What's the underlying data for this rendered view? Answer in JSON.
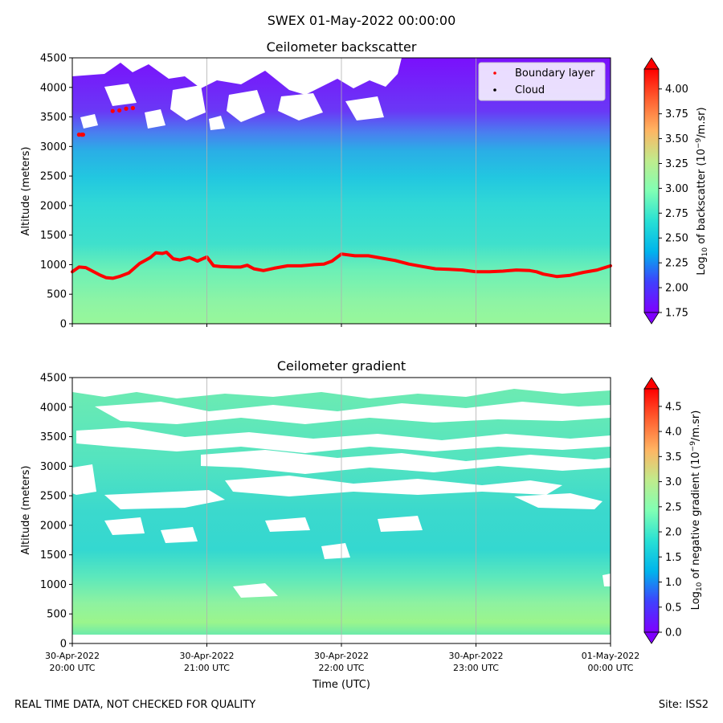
{
  "suptitle": "SWEX 01-May-2022 00:00:00",
  "footer": {
    "left": "REAL TIME DATA, NOT CHECKED FOR QUALITY",
    "right": "Site: ISS2"
  },
  "chart_data": [
    {
      "type": "heatmap",
      "title": "Ceilometer backscatter",
      "xlabel": "",
      "ylabel": "Altitude (meters)",
      "ylim": [
        0,
        4500
      ],
      "yticks": [
        0,
        500,
        1000,
        1500,
        2000,
        2500,
        3000,
        3500,
        4000,
        4500
      ],
      "xlim_hours": [
        20,
        24
      ],
      "colorbar": {
        "label": "Log10 of backscatter (10^-9/m.sr)",
        "min": 1.75,
        "max": 4.2,
        "ticks": [
          "1.75",
          "2.00",
          "2.25",
          "2.50",
          "2.75",
          "3.00",
          "3.25",
          "3.50",
          "3.75",
          "4.00"
        ],
        "tick_values": [
          1.75,
          2.0,
          2.25,
          2.5,
          2.75,
          3.0,
          3.25,
          3.5,
          3.75,
          4.0
        ]
      },
      "legend": {
        "location": "top-right",
        "entries": [
          {
            "label": "Boundary layer",
            "color": "#ff0000"
          },
          {
            "label": "Cloud",
            "color": "#000000"
          }
        ]
      },
      "boundary_layer": {
        "name": "Boundary layer",
        "color": "#ff0000",
        "x_hours": [
          20.0,
          20.05,
          20.1,
          20.2,
          20.25,
          20.3,
          20.35,
          20.42,
          20.5,
          20.58,
          20.62,
          20.67,
          20.7,
          20.75,
          20.8,
          20.87,
          20.93,
          21.0,
          21.05,
          21.1,
          21.2,
          21.25,
          21.3,
          21.35,
          21.42,
          21.5,
          21.6,
          21.7,
          21.8,
          21.87,
          21.93,
          22.0,
          22.1,
          22.2,
          22.3,
          22.4,
          22.5,
          22.6,
          22.7,
          22.8,
          22.9,
          23.0,
          23.1,
          23.2,
          23.3,
          23.4,
          23.45,
          23.5,
          23.55,
          23.6,
          23.7,
          23.8,
          23.9,
          24.0
        ],
        "altitude_m": [
          880,
          960,
          950,
          830,
          780,
          770,
          800,
          860,
          1020,
          1120,
          1200,
          1190,
          1210,
          1100,
          1080,
          1120,
          1060,
          1130,
          980,
          970,
          960,
          960,
          990,
          930,
          900,
          940,
          980,
          980,
          1000,
          1010,
          1060,
          1180,
          1150,
          1150,
          1110,
          1070,
          1010,
          970,
          930,
          920,
          910,
          880,
          880,
          890,
          910,
          900,
          880,
          840,
          820,
          800,
          820,
          870,
          910,
          980
        ]
      },
      "cloud_base_points": {
        "name": "Cloud",
        "x_hours": [
          20.05,
          20.07,
          20.08,
          20.3,
          20.35,
          20.4,
          20.45
        ],
        "altitude_m": [
          3200,
          3200,
          3200,
          3600,
          3610,
          3640,
          3650
        ]
      }
    },
    {
      "type": "heatmap",
      "title": "Ceilometer gradient",
      "xlabel": "Time (UTC)",
      "ylabel": "Altitude (meters)",
      "ylim": [
        0,
        4500
      ],
      "yticks": [
        0,
        500,
        1000,
        1500,
        2000,
        2500,
        3000,
        3500,
        4000,
        4500
      ],
      "xlim_hours": [
        20,
        24
      ],
      "colorbar": {
        "label": "Log10 of negative gradient (10^-9/m.sr)",
        "min": 0.0,
        "max": 4.85,
        "ticks": [
          "0.0",
          "0.5",
          "1.0",
          "1.5",
          "2.0",
          "2.5",
          "3.0",
          "3.5",
          "4.0",
          "4.5"
        ],
        "tick_values": [
          0.0,
          0.5,
          1.0,
          1.5,
          2.0,
          2.5,
          3.0,
          3.5,
          4.0,
          4.5
        ]
      },
      "xtick_hours": [
        20,
        21,
        22,
        23,
        24
      ],
      "xtick_labels": [
        [
          "30-Apr-2022",
          "20:00 UTC"
        ],
        [
          "30-Apr-2022",
          "21:00 UTC"
        ],
        [
          "30-Apr-2022",
          "22:00 UTC"
        ],
        [
          "30-Apr-2022",
          "23:00 UTC"
        ],
        [
          "01-May-2022",
          "00:00 UTC"
        ]
      ]
    }
  ]
}
